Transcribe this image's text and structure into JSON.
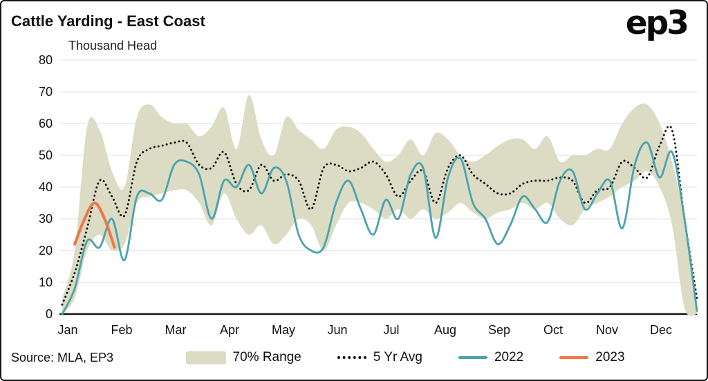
{
  "header": {
    "title": "Cattle Yarding - East Coast",
    "units_label": "Thousand Head",
    "logo_text": "ep3"
  },
  "footer": {
    "source": "Source: MLA, EP3"
  },
  "legend": {
    "items": [
      {
        "label": "70% Range",
        "type": "band",
        "color": "#dbdcc3"
      },
      {
        "label": "5 Yr Avg",
        "type": "dotted",
        "color": "#141414"
      },
      {
        "label": "2022",
        "type": "line",
        "color": "#4ba2ad"
      },
      {
        "label": "2023",
        "type": "line",
        "color": "#ef7647"
      }
    ]
  },
  "chart_data": {
    "type": "line",
    "title": "Cattle Yarding - East Coast",
    "xlabel": "",
    "ylabel": "Thousand Head",
    "ylim": [
      0,
      80
    ],
    "yticks": [
      0,
      10,
      20,
      30,
      40,
      50,
      60,
      70,
      80
    ],
    "x_unit": "week",
    "x_range": [
      1,
      52
    ],
    "month_labels": [
      "Jan",
      "Feb",
      "Mar",
      "Apr",
      "May",
      "Jun",
      "Jul",
      "Aug",
      "Sep",
      "Oct",
      "Nov",
      "Dec"
    ],
    "grid": "horizontal",
    "legend_position": "bottom",
    "band_70_range": {
      "name": "70% Range",
      "color": "#dbdcc3",
      "upper": [
        5,
        20,
        59,
        58,
        45,
        40,
        62,
        66,
        62,
        60,
        60,
        56,
        59,
        65,
        52,
        69,
        55,
        50,
        62,
        58,
        55,
        52,
        58,
        59,
        57,
        52,
        48,
        50,
        55,
        50,
        57,
        55,
        50,
        48,
        50,
        53,
        55,
        55,
        52,
        56,
        48,
        50,
        50,
        52,
        52,
        60,
        65,
        66,
        60,
        48,
        30,
        4
      ],
      "lower": [
        0,
        5,
        20,
        25,
        20,
        22,
        35,
        37,
        38,
        39,
        39,
        35,
        28,
        38,
        30,
        25,
        28,
        22,
        25,
        30,
        28,
        20,
        28,
        35,
        35,
        33,
        30,
        33,
        30,
        33,
        30,
        32,
        35,
        32,
        30,
        32,
        33,
        35,
        33,
        35,
        30,
        28,
        33,
        35,
        37,
        40,
        42,
        45,
        40,
        28,
        2,
        0
      ]
    },
    "series": [
      {
        "name": "5 Yr Avg",
        "style": "dotted",
        "color": "#141414",
        "values": [
          3,
          13,
          27,
          42,
          37,
          31,
          48,
          52,
          53,
          54,
          54,
          47,
          46,
          51,
          41,
          39,
          47,
          42,
          44,
          42,
          33,
          46,
          47,
          45,
          46,
          48,
          44,
          37,
          42,
          45,
          35,
          46,
          50,
          44,
          41,
          38,
          38,
          41,
          42,
          42,
          43,
          42,
          35,
          39,
          40,
          48,
          46,
          43,
          53,
          58,
          30,
          5
        ]
      },
      {
        "name": "2022",
        "style": "solid",
        "color": "#4ba2ad",
        "values": [
          0,
          8,
          23,
          21,
          30,
          17,
          37,
          38,
          36,
          47,
          48,
          44,
          30,
          42,
          40,
          47,
          38,
          46,
          42,
          25,
          20,
          21,
          35,
          42,
          33,
          25,
          36,
          30,
          44,
          46,
          24,
          43,
          49,
          35,
          30,
          22,
          28,
          37,
          33,
          29,
          42,
          45,
          33,
          38,
          42,
          27,
          47,
          54,
          43,
          51,
          30,
          1
        ]
      },
      {
        "name": "2023",
        "style": "solid",
        "color": "#ef7647",
        "x": [
          2,
          2.8,
          3.6,
          4.4,
          5.2
        ],
        "values": [
          22,
          30,
          35,
          30,
          21
        ]
      }
    ]
  }
}
